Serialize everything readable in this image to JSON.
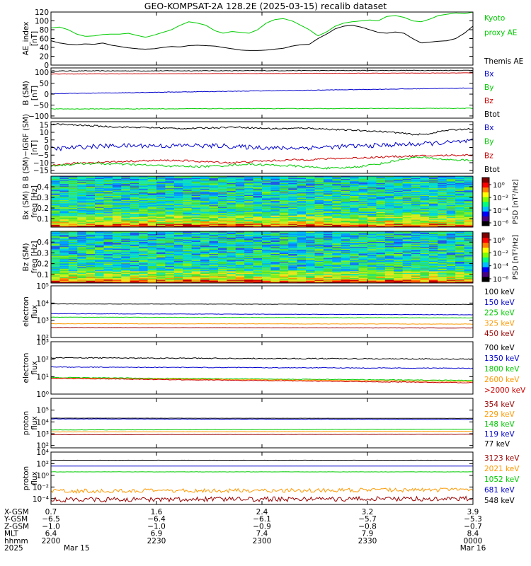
{
  "title": "GEO-KOMPSAT-2A 128.2E (2025-03-15) recalib dataset",
  "colors": {
    "black": "#000000",
    "blue": "#0000cc",
    "green": "#00cc00",
    "red": "#cc0000",
    "orange": "#ff9900",
    "darkred": "#990000",
    "lime": "#22ee22"
  },
  "chart_data": [
    {
      "id": "ae",
      "type": "line",
      "ylabel": "AE_index\n[nT]",
      "ylim": [
        0,
        120
      ],
      "yticks": [
        {
          "v": 0,
          "l": "0"
        },
        {
          "v": 20,
          "l": "20"
        },
        {
          "v": 40,
          "l": "40"
        },
        {
          "v": 60,
          "l": "60"
        },
        {
          "v": 80,
          "l": "80"
        },
        {
          "v": 100,
          "l": "100"
        },
        {
          "v": 120,
          "l": "120"
        }
      ],
      "legend": [
        {
          "text": "Kyoto",
          "color": "green"
        },
        {
          "text": "proxy AE",
          "color": "green"
        },
        {
          "text": "",
          "color": "black"
        },
        {
          "text": "Themis AE",
          "color": "black"
        }
      ],
      "series": [
        {
          "name": "Kyoto proxy AE",
          "color": "green",
          "values": [
            84,
            86,
            80,
            70,
            65,
            66,
            69,
            70,
            70,
            72,
            67,
            63,
            68,
            74,
            80,
            90,
            98,
            95,
            90,
            78,
            72,
            76,
            74,
            72,
            80,
            95,
            103,
            105,
            100,
            90,
            80,
            66,
            75,
            88,
            95,
            98,
            100,
            102,
            100,
            110,
            112,
            108,
            100,
            98,
            104,
            112,
            115,
            118,
            116,
            120
          ]
        },
        {
          "name": "Themis AE",
          "color": "black",
          "values": [
            55,
            50,
            47,
            46,
            48,
            47,
            50,
            45,
            42,
            39,
            37,
            36,
            37,
            40,
            42,
            41,
            44,
            45,
            44,
            43,
            40,
            37,
            34,
            33,
            33,
            34,
            36,
            38,
            43,
            46,
            47,
            60,
            70,
            82,
            88,
            90,
            86,
            80,
            74,
            72,
            75,
            72,
            60,
            50,
            52,
            54,
            55,
            60,
            72,
            88
          ]
        }
      ]
    },
    {
      "id": "bsm",
      "type": "line",
      "ylabel": "B (SM)\n[nT]",
      "ylim": [
        -110,
        120
      ],
      "yticks": [
        {
          "v": -100,
          "l": "−100"
        },
        {
          "v": -50,
          "l": "−50"
        },
        {
          "v": 0,
          "l": "0"
        },
        {
          "v": 50,
          "l": "50"
        },
        {
          "v": 100,
          "l": "100"
        }
      ],
      "legend": [
        {
          "text": "Bx",
          "color": "blue"
        },
        {
          "text": "By",
          "color": "green"
        },
        {
          "text": "Bz",
          "color": "red"
        },
        {
          "text": "Btot",
          "color": "black"
        }
      ],
      "series": [
        {
          "name": "Btot",
          "color": "black",
          "start": 106,
          "end": 109,
          "noise": 1.5
        },
        {
          "name": "Bz",
          "color": "red",
          "start": 92,
          "end": 97,
          "noise": 0.8
        },
        {
          "name": "Bx",
          "color": "blue",
          "start": 2,
          "end": 28,
          "noise": 1.2
        },
        {
          "name": "By",
          "color": "green",
          "start": -68,
          "end": -65,
          "noise": 1.2
        }
      ]
    },
    {
      "id": "bigrf",
      "type": "line",
      "ylabel": "B (SM)−IGRF (SM)\n[nT]",
      "ylim": [
        -17,
        17
      ],
      "yticks": [
        {
          "v": -15,
          "l": "−15"
        },
        {
          "v": -10,
          "l": "−10"
        },
        {
          "v": -5,
          "l": "−5"
        },
        {
          "v": 0,
          "l": "0"
        },
        {
          "v": 5,
          "l": "5"
        },
        {
          "v": 10,
          "l": "10"
        },
        {
          "v": 15,
          "l": "15"
        }
      ],
      "legend": [
        {
          "text": "Bx",
          "color": "blue"
        },
        {
          "text": "By",
          "color": "green"
        },
        {
          "text": "Bz",
          "color": "red"
        },
        {
          "text": "Btot",
          "color": "black"
        }
      ],
      "series": [
        {
          "name": "Btot",
          "color": "black",
          "values": [
            15.5,
            15.2,
            14.8,
            14.5,
            14.2,
            13.8,
            13.5,
            13.3,
            13.2,
            13.0,
            12.8,
            12.6,
            12.5,
            12.7,
            13.0,
            13.2,
            13.5,
            13.2,
            12.8,
            12.5,
            12.4,
            12.5,
            12.8,
            12.6,
            12.2,
            11.8,
            11.5,
            11.2,
            10.9,
            10.5,
            10.0,
            9.2,
            8.5,
            8.8,
            10.5,
            11.5,
            12.0,
            12.3
          ],
          "noise": 0.5
        },
        {
          "name": "Bx",
          "color": "blue",
          "values": [
            -1,
            -0.5,
            0,
            0.5,
            0.8,
            1,
            1.2,
            1.1,
            1.2,
            1.3,
            1,
            1.2,
            1.4,
            1.2,
            1,
            1.2,
            0.5,
            0.3,
            0.2,
            0,
            -0.5,
            -0.3,
            -0.2,
            0,
            0.3,
            0.5,
            0.8,
            1.0,
            1.2,
            1.5,
            1.8,
            2.0,
            2.2,
            2.6,
            3.0,
            3.3,
            3.8,
            4.2
          ],
          "noise": 1.5
        },
        {
          "name": "Bz",
          "color": "red",
          "values": [
            -12,
            -11,
            -10.5,
            -10,
            -9.8,
            -9.5,
            -9.3,
            -9,
            -8.8,
            -8.6,
            -8.5,
            -8.5,
            -8.8,
            -9.2,
            -9.5,
            -9.8,
            -10,
            -9.5,
            -9,
            -8.8,
            -8.5,
            -8.2,
            -8,
            -7.8,
            -7.5,
            -7.2,
            -7,
            -6.8,
            -6.5,
            -6.3,
            -6,
            -5.8,
            -5.6,
            -5.5,
            -5.3,
            -5.1,
            -5,
            -5
          ],
          "noise": 0.6
        },
        {
          "name": "By",
          "color": "green",
          "values": [
            -12,
            -11.5,
            -11,
            -10.5,
            -10.5,
            -10.8,
            -11,
            -11.2,
            -11.5,
            -11.8,
            -12,
            -12.3,
            -12.5,
            -12.5,
            -12.3,
            -12,
            -11.5,
            -11,
            -11.2,
            -11.5,
            -11.8,
            -12,
            -12.5,
            -13,
            -13.5,
            -13.8,
            -13.2,
            -12.5,
            -11.5,
            -10.5,
            -9,
            -7.5,
            -6.5,
            -6.8,
            -7.5,
            -8,
            -8.3,
            -8.5
          ],
          "noise": 0.7
        }
      ]
    },
    {
      "id": "bxspec",
      "type": "heatmap",
      "ylabel": "Bx (SM)  B\nfreq [Hz]",
      "ylim": [
        0.02,
        0.5
      ],
      "yticks": [
        {
          "v": 0.1,
          "l": "0.1"
        },
        {
          "v": 0.2,
          "l": "0.2"
        },
        {
          "v": 0.3,
          "l": "0.3"
        },
        {
          "v": 0.4,
          "l": "0.4"
        }
      ],
      "colorbar": {
        "label": "PSD [nT²/Hz]",
        "ticks": [
          "10⁰",
          "10⁻²",
          "10⁻⁴",
          "10⁻⁶"
        ]
      }
    },
    {
      "id": "bzspec",
      "type": "heatmap",
      "ylabel": "Bz (SM)\nfreq [Hz]",
      "ylim": [
        0.02,
        0.5
      ],
      "yticks": [
        {
          "v": 0.1,
          "l": "0.1"
        },
        {
          "v": 0.2,
          "l": "0.2"
        },
        {
          "v": 0.3,
          "l": "0.3"
        },
        {
          "v": 0.4,
          "l": "0.4"
        }
      ],
      "colorbar": {
        "label": "PSD [nT²/Hz]",
        "ticks": [
          "10⁰",
          "10⁻²",
          "10⁻⁴",
          "10⁻⁶"
        ]
      }
    },
    {
      "id": "eflux1",
      "type": "line",
      "scale": "log",
      "ylabel": "electron\nflux",
      "ylim": [
        2,
        5
      ],
      "yticks": [
        {
          "v": 2,
          "l": "10²"
        },
        {
          "v": 3,
          "l": "10³"
        },
        {
          "v": 4,
          "l": "10⁴"
        },
        {
          "v": 5,
          "l": "10⁵"
        }
      ],
      "legend": [
        {
          "text": "100 keV",
          "color": "black"
        },
        {
          "text": "150 keV",
          "color": "blue"
        },
        {
          "text": "225 keV",
          "color": "green"
        },
        {
          "text": "325 keV",
          "color": "orange"
        },
        {
          "text": "450 keV",
          "color": "darkred"
        }
      ],
      "series": [
        {
          "name": "100 keV",
          "color": "black",
          "start": 3.95,
          "end": 3.92,
          "noise": 0.01
        },
        {
          "name": "150 keV",
          "color": "blue",
          "start": 3.38,
          "end": 3.32,
          "noise": 0.01
        },
        {
          "name": "225 keV",
          "color": "green",
          "start": 3.18,
          "end": 3.14,
          "noise": 0.01
        },
        {
          "name": "325 keV",
          "color": "orange",
          "start": 2.8,
          "end": 2.78,
          "noise": 0.01
        },
        {
          "name": "450 keV",
          "color": "darkred",
          "start": 2.58,
          "end": 2.55,
          "noise": 0.01
        }
      ]
    },
    {
      "id": "eflux2",
      "type": "line",
      "scale": "log",
      "ylabel": "electron\nflux",
      "ylim": [
        0,
        3
      ],
      "yticks": [
        {
          "v": 0,
          "l": "10⁰"
        },
        {
          "v": 1,
          "l": "10¹"
        },
        {
          "v": 2,
          "l": "10²"
        },
        {
          "v": 3,
          "l": "10³"
        }
      ],
      "legend": [
        {
          "text": "700 keV",
          "color": "black"
        },
        {
          "text": "1350 keV",
          "color": "blue"
        },
        {
          "text": "1800 keV",
          "color": "green"
        },
        {
          "text": "2600 keV",
          "color": "orange"
        },
        {
          "text": ">2000 keV",
          "color": "red"
        }
      ],
      "series": [
        {
          "name": "700 keV",
          "color": "black",
          "start": 2.08,
          "end": 2.0,
          "noise": 0.03
        },
        {
          "name": "1350 keV",
          "color": "blue",
          "start": 1.55,
          "end": 1.48,
          "noise": 0.02
        },
        {
          "name": "1800 keV",
          "color": "green",
          "start": 0.95,
          "end": 0.78,
          "noise": 0.02
        },
        {
          "name": "2600 keV",
          "color": "orange",
          "start": 0.92,
          "end": 0.72,
          "noise": 0.02
        },
        {
          "name": ">2000 keV",
          "color": "red",
          "start": 0.9,
          "end": 0.65,
          "noise": 0.02
        }
      ]
    },
    {
      "id": "pflux1",
      "type": "line",
      "scale": "log",
      "ylabel": "proton\nflux",
      "ylim": [
        1.8,
        6
      ],
      "yticks": [
        {
          "v": 2,
          "l": "10²"
        },
        {
          "v": 3,
          "l": "10³"
        },
        {
          "v": 4,
          "l": "10⁴"
        },
        {
          "v": 5,
          "l": "10⁵"
        }
      ],
      "legend": [
        {
          "text": "354 keV",
          "color": "darkred"
        },
        {
          "text": "229 keV",
          "color": "orange"
        },
        {
          "text": "148 keV",
          "color": "green"
        },
        {
          "text": "119 keV",
          "color": "blue"
        },
        {
          "text": "77 keV",
          "color": "black"
        }
      ],
      "series": [
        {
          "name": "77 keV",
          "color": "black",
          "start": 4.32,
          "end": 4.3,
          "noise": 0.005
        },
        {
          "name": "119 keV",
          "color": "blue",
          "start": 4.25,
          "end": 4.22,
          "noise": 0.015
        },
        {
          "name": "148 keV",
          "color": "green",
          "start": 3.32,
          "end": 3.38,
          "noise": 0.01
        },
        {
          "name": "229 keV",
          "color": "orange",
          "start": 3.15,
          "end": 3.2,
          "noise": 0.01
        },
        {
          "name": "354 keV",
          "color": "darkred",
          "start": 2.92,
          "end": 2.95,
          "noise": 0.01
        }
      ]
    },
    {
      "id": "pflux2",
      "type": "line",
      "scale": "log",
      "ylabel": "proton\nflux",
      "ylim": [
        -5,
        4
      ],
      "yticks": [
        {
          "v": -4,
          "l": "10⁻⁴"
        },
        {
          "v": -2,
          "l": "10⁻²"
        },
        {
          "v": 0,
          "l": "10⁰"
        },
        {
          "v": 2,
          "l": "10²"
        },
        {
          "v": 4,
          "l": "10⁴"
        }
      ],
      "legend": [
        {
          "text": "3123 keV",
          "color": "darkred"
        },
        {
          "text": "2021 keV",
          "color": "orange"
        },
        {
          "text": "1052 keV",
          "color": "green"
        },
        {
          "text": "681 keV",
          "color": "blue"
        },
        {
          "text": "548 keV",
          "color": "black"
        }
      ],
      "series": [
        {
          "name": "548 keV",
          "color": "black",
          "start": 2.6,
          "end": 2.6,
          "noise": 0.01
        },
        {
          "name": "681 keV",
          "color": "blue",
          "start": 1.6,
          "end": 1.6,
          "noise": 0.0
        },
        {
          "name": "1052 keV",
          "color": "green",
          "start": 0.6,
          "end": 0.6,
          "noise": 0.02
        },
        {
          "name": "2021 keV",
          "color": "orange",
          "start": -2.7,
          "end": -2.5,
          "noise": 0.35
        },
        {
          "name": "3123 keV",
          "color": "darkred",
          "start": -4.2,
          "end": -4.0,
          "noise": 0.4
        }
      ]
    }
  ],
  "time_axis": {
    "rows": [
      {
        "label": "X-GSM",
        "values": [
          "0.7",
          "1.6",
          "2.4",
          "3.2",
          "3.9"
        ]
      },
      {
        "label": "Y-GSM",
        "values": [
          "−6.5",
          "−6.4",
          "−6.1",
          "−5.7",
          "−5.3"
        ]
      },
      {
        "label": "Z-GSM",
        "values": [
          "−1.0",
          "−1.0",
          "−0.9",
          "−0.8",
          "−0.7"
        ]
      },
      {
        "label": "MLT",
        "values": [
          "6.4",
          "6.9",
          "7.4",
          "7.9",
          "8.4"
        ]
      },
      {
        "label": "hhmm",
        "values": [
          "2200",
          "2230",
          "2300",
          "2330",
          "0000"
        ]
      },
      {
        "label": "2025",
        "values": [
          "Mar 15",
          "",
          "",
          "",
          "Mar 16"
        ]
      }
    ]
  }
}
